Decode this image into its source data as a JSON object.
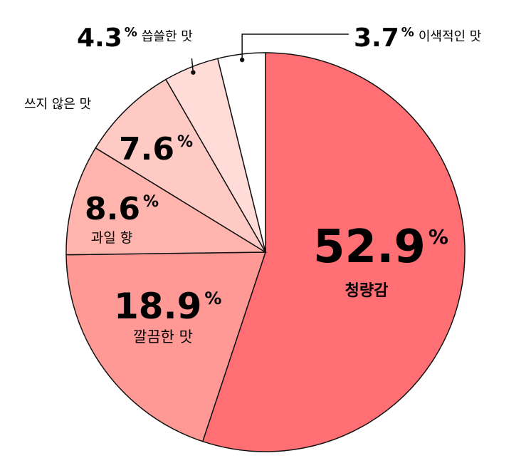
{
  "chart_data": {
    "type": "pie",
    "start_angle_deg": 0,
    "direction": "clockwise",
    "slices": [
      {
        "label": "청량감",
        "value": 52.9,
        "value_text": "52.9",
        "unit": "%",
        "color": "#ff6f74"
      },
      {
        "label": "깔끔한 맛",
        "value": 18.9,
        "value_text": "18.9",
        "unit": "%",
        "color": "#ff9995"
      },
      {
        "label": "과일 향",
        "value": 8.6,
        "value_text": "8.6",
        "unit": "%",
        "color": "#ffb4ad"
      },
      {
        "label": "쓰지 않은 맛",
        "value": 7.6,
        "value_text": "7.6",
        "unit": "%",
        "color": "#ffcac4"
      },
      {
        "label": "씁쓸한 맛",
        "value": 4.3,
        "value_text": "4.3",
        "unit": "%",
        "color": "#ffdcd8"
      },
      {
        "label": "이색적인 맛",
        "value": 3.7,
        "value_text": "3.7",
        "unit": "%",
        "color": "#ffffff"
      }
    ]
  }
}
